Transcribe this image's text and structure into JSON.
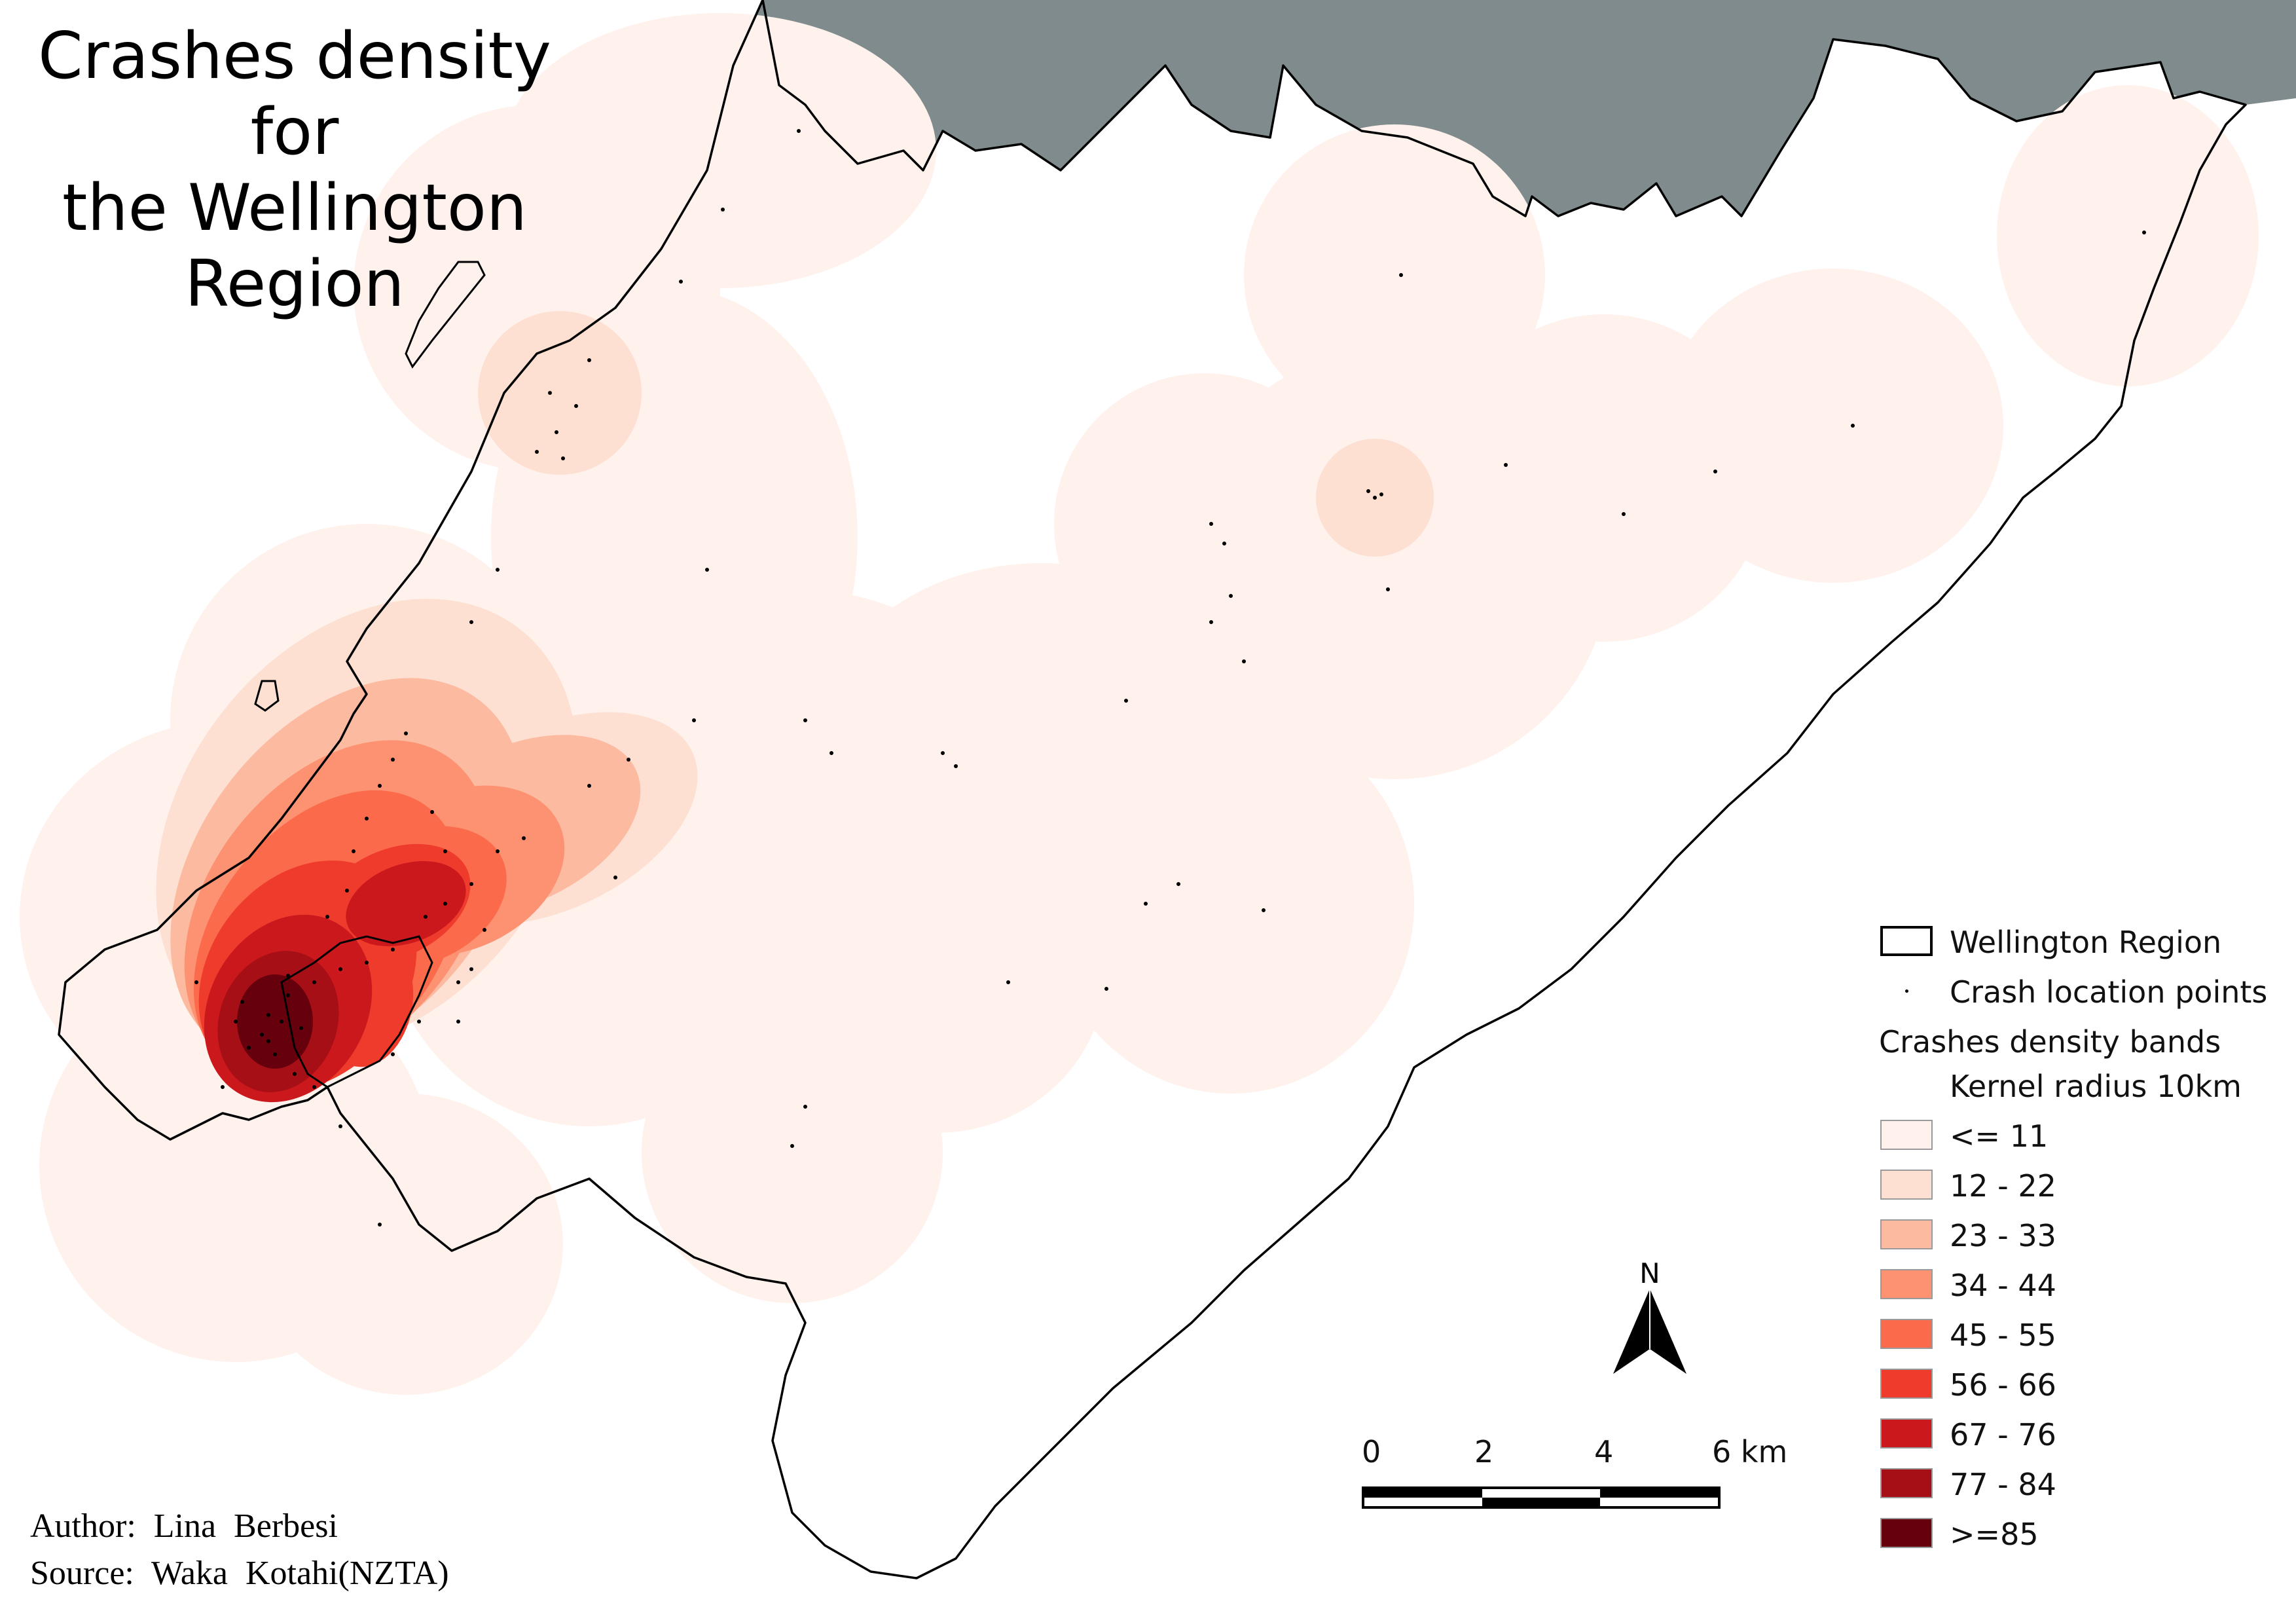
{
  "map": {
    "title": "Crashes density for\nthe Wellington\nRegion",
    "credits": {
      "author": "Author:  Lina  Berbesi",
      "source": "Source:  Waka  Kotahi(NZTA)"
    },
    "colors": {
      "neighbour_land": "#7f8b8c",
      "band_1": "#fff1ec",
      "band_2": "#fde0d2",
      "band_3": "#fcbba1",
      "band_4": "#fc9272",
      "band_5": "#fb6a4a",
      "band_6": "#ef3b2c",
      "band_7": "#cb181d",
      "band_8": "#a50f15",
      "band_9": "#67000d"
    }
  },
  "legend": {
    "region": "Wellington Region",
    "points": "Crash location points",
    "bands_title": "Crashes density bands",
    "bands_subtitle": "Kernel radius 10km",
    "bands": [
      {
        "label": "<= 11",
        "color": "#fff1ec"
      },
      {
        "label": "12 - 22",
        "color": "#fde0d2"
      },
      {
        "label": "23 - 33",
        "color": "#fcbba1"
      },
      {
        "label": "34 - 44",
        "color": "#fc9272"
      },
      {
        "label": "45 - 55",
        "color": "#fb6a4a"
      },
      {
        "label": "56 - 66",
        "color": "#ef3b2c"
      },
      {
        "label": "67 - 76",
        "color": "#cb181d"
      },
      {
        "label": "77 - 84",
        "color": "#a50f15"
      },
      {
        "label": ">=85",
        "color": "#67000d"
      }
    ]
  },
  "scalebar": {
    "ticks": [
      "0",
      "2",
      "4",
      "6 km"
    ]
  },
  "north_arrow": {
    "label": "N",
    "icon": "north-arrow-icon"
  }
}
